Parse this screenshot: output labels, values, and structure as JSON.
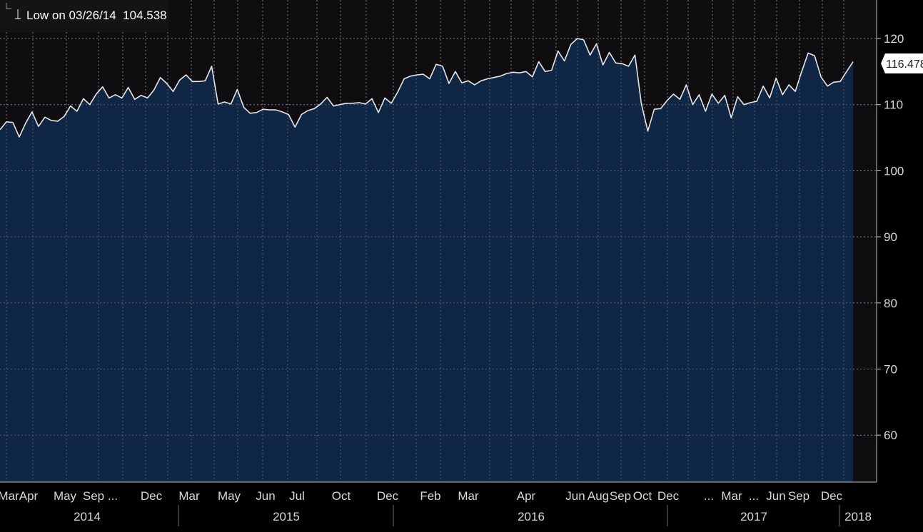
{
  "legend": {
    "low_text": "Low on 03/26/14  104.538"
  },
  "last_value_label": "116.478",
  "colors": {
    "background": "#000000",
    "plot_background": "#0f0d10",
    "area_fill": "#0f2744",
    "line": "#e6e6e6",
    "grid": "#8a8f96",
    "text": "#d8d8d8"
  },
  "chart_data": {
    "type": "area",
    "title": "",
    "xlabel": "",
    "ylabel": "",
    "ylim": [
      54,
      126
    ],
    "y_ticks": [
      60,
      70,
      80,
      90,
      100,
      110,
      120
    ],
    "grid": true,
    "legend_position": "top-left",
    "x_tick_labels": [
      "Mar",
      "Apr",
      "May",
      "Sep",
      "...",
      "Dec",
      "Mar",
      "May",
      "Jun",
      "Jul",
      "Oct",
      "Dec",
      "Feb",
      "Mar",
      "Apr",
      "Jun",
      "Aug",
      "Sep",
      "Oct",
      "Dec",
      "...",
      "Mar",
      "...",
      "Jun",
      "Sep",
      "Dec"
    ],
    "year_labels": [
      "2014",
      "2015",
      "2016",
      "2017",
      "2018"
    ],
    "series": [
      {
        "values": [
          106.2,
          107.4,
          107.3,
          105.1,
          107.2,
          108.9,
          106.7,
          108.1,
          107.6,
          107.5,
          108.2,
          109.8,
          109.0,
          110.9,
          110.0,
          111.6,
          112.7,
          111.0,
          111.5,
          111.0,
          112.6,
          110.8,
          111.4,
          111.0,
          112.2,
          114.1,
          113.2,
          112.0,
          113.7,
          114.5,
          113.5,
          113.5,
          113.6,
          115.8,
          110.1,
          110.4,
          110.1,
          112.3,
          109.6,
          108.7,
          108.8,
          109.3,
          109.2,
          109.2,
          108.9,
          108.5,
          106.6,
          108.5,
          109.1,
          109.4,
          110.1,
          111.1,
          109.8,
          110.0,
          110.2,
          110.2,
          110.3,
          110.1,
          110.9,
          108.8,
          111.0,
          110.2,
          111.9,
          113.9,
          114.3,
          114.5,
          114.6,
          113.9,
          116.1,
          115.8,
          113.2,
          115.0,
          113.3,
          113.6,
          113.0,
          113.6,
          113.9,
          114.1,
          114.3,
          114.7,
          114.9,
          114.8,
          115.0,
          114.2,
          116.5,
          115.0,
          115.2,
          118.1,
          116.6,
          119.1,
          120.0,
          119.8,
          117.5,
          119.2,
          116.0,
          117.9,
          116.3,
          116.2,
          115.8,
          117.5,
          110.1,
          106.0,
          109.3,
          109.4,
          110.6,
          111.6,
          110.8,
          113.0,
          110.0,
          111.5,
          109.0,
          111.6,
          110.2,
          111.4,
          108.0,
          111.2,
          110.0,
          110.3,
          110.5,
          112.8,
          111.0,
          114.0,
          111.5,
          113.0,
          112.0,
          115.0,
          117.8,
          117.4,
          114.2,
          112.8,
          113.4,
          113.5,
          115.0,
          116.478
        ]
      }
    ]
  }
}
